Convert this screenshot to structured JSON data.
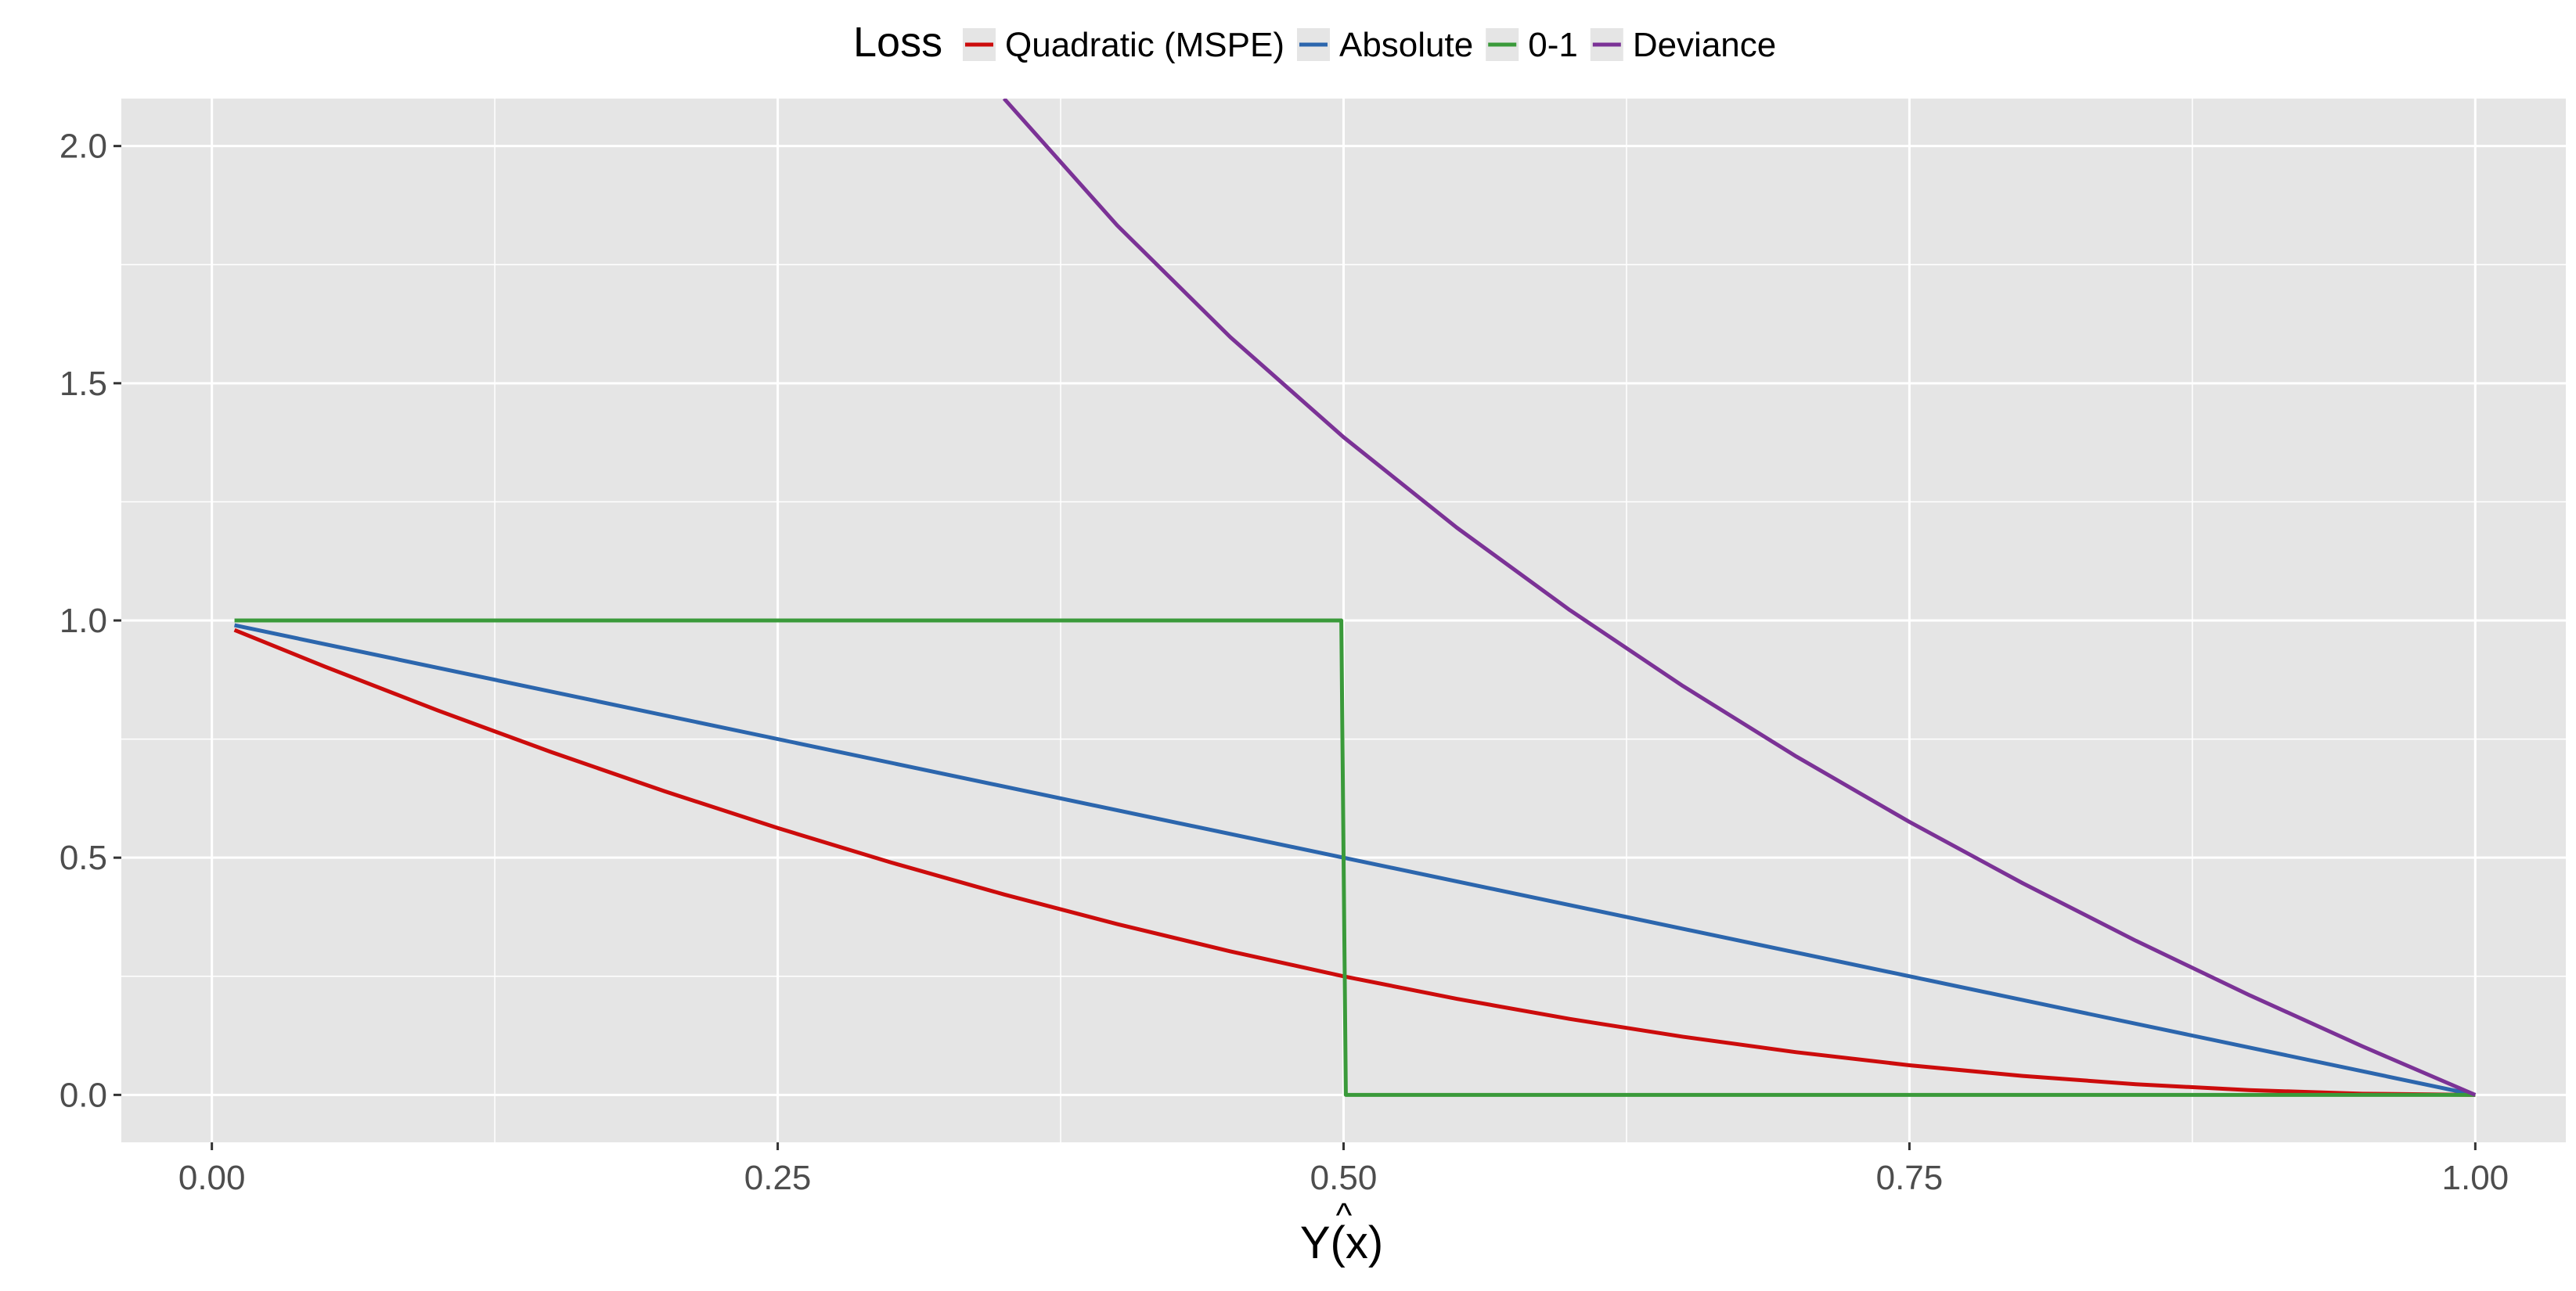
{
  "chart_data": {
    "type": "line",
    "title": "",
    "xlabel": "Y(x)",
    "xlabel_hat": "^",
    "ylabel": "",
    "xlim": [
      -0.04,
      1.04
    ],
    "ylim": [
      -0.1,
      2.1
    ],
    "x_ticks": [
      0,
      0.25,
      0.5,
      0.75,
      1
    ],
    "x_tick_labels": [
      "0.00",
      "0.25",
      "0.50",
      "0.75",
      "1.00"
    ],
    "y_ticks": [
      0,
      0.5,
      1,
      1.5,
      2
    ],
    "y_tick_labels": [
      "0.0",
      "0.5",
      "1.0",
      "1.5",
      "2.0"
    ],
    "x_minor_ticks": [
      0.125,
      0.375,
      0.625,
      0.875
    ],
    "y_minor_ticks": [
      0.25,
      0.75,
      1.25,
      1.75
    ],
    "grid": true,
    "panel_background": "#e5e5e5",
    "grid_color": "#ffffff",
    "legend": {
      "title": "Loss",
      "position": "top"
    },
    "series": [
      {
        "name": "Quadratic (MSPE)",
        "color": "#cc0c0c",
        "formula": "(1-x)^2",
        "x": [
          0.01,
          0.05,
          0.1,
          0.15,
          0.2,
          0.25,
          0.3,
          0.35,
          0.4,
          0.45,
          0.5,
          0.55,
          0.6,
          0.65,
          0.7,
          0.75,
          0.8,
          0.85,
          0.9,
          0.95,
          1.0
        ],
        "values": [
          0.98,
          0.9025,
          0.81,
          0.7225,
          0.64,
          0.5625,
          0.49,
          0.4225,
          0.36,
          0.3025,
          0.25,
          0.2025,
          0.16,
          0.1225,
          0.09,
          0.0625,
          0.04,
          0.0225,
          0.01,
          0.0025,
          0.0
        ]
      },
      {
        "name": "Absolute",
        "color": "#2c66ad",
        "formula": "1-x",
        "x": [
          0.01,
          1.0
        ],
        "values": [
          0.99,
          0.0
        ]
      },
      {
        "name": "0-1",
        "color": "#3a9a3a",
        "formula": "step at 0.5",
        "x": [
          0.01,
          0.499,
          0.501,
          1.0
        ],
        "values": [
          1.0,
          1.0,
          0.0,
          0.0
        ]
      },
      {
        "name": "Deviance",
        "color": "#7b3296",
        "formula": "-2*ln(x)",
        "x": [
          0.35,
          0.4,
          0.45,
          0.5,
          0.55,
          0.6,
          0.65,
          0.7,
          0.75,
          0.8,
          0.85,
          0.9,
          0.95,
          1.0
        ],
        "values": [
          2.1,
          1.8326,
          1.597,
          1.3863,
          1.1957,
          1.0217,
          0.8616,
          0.7133,
          0.5754,
          0.4463,
          0.325,
          0.2107,
          0.1026,
          0.0
        ]
      }
    ]
  }
}
